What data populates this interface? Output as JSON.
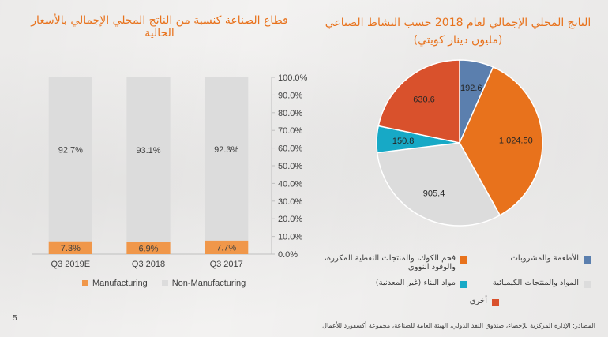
{
  "left_title": "قطاع الصناعة كنسبة من الناتج المحلي الإجمالي بالأسعار الحالية",
  "right_title_line1": "الناتج المحلي الإجمالي لعام 2018 حسب النشاط الصناعي",
  "right_title_line2": "(مليون دينار كويتي)",
  "page_number": "5",
  "source": "المصادر: الإدارة المركزية للإحصاء، صندوق النقد الدولي، الهيئة العامة للصناعة، مجموعة أكسفورد للأعمال",
  "colors": {
    "title": "#e8721c",
    "manufacturing": "#f0974a",
    "non_manufacturing": "#dcdcdc"
  },
  "chart_data": [
    {
      "type": "bar",
      "stacked": true,
      "categories": [
        "Q3 2019E",
        "Q3 2018",
        "Q3 2017"
      ],
      "series": [
        {
          "name": "Manufacturing",
          "values": [
            7.3,
            6.9,
            7.7
          ],
          "labels": [
            "7.3%",
            "6.9%",
            "7.7%"
          ],
          "color": "#f0974a"
        },
        {
          "name": "Non-Manufacturing",
          "values": [
            92.7,
            93.1,
            92.3
          ],
          "labels": [
            "92.7%",
            "93.1%",
            "92.3%"
          ],
          "color": "#dcdcdc"
        }
      ],
      "yaxis_position": "right",
      "ylim": [
        0,
        100
      ],
      "yticks": [
        "0.0%",
        "10.0%",
        "20.0%",
        "30.0%",
        "40.0%",
        "50.0%",
        "60.0%",
        "70.0%",
        "80.0%",
        "90.0%",
        "100.0%"
      ],
      "legend_position": "bottom"
    },
    {
      "type": "pie",
      "slices": [
        {
          "name": "الأطعمة والمشروبات",
          "value": 192.6,
          "label": "192.6",
          "color": "#5b7fae"
        },
        {
          "name": "فحم الكوك، والمنتجات النفطية المكررة، والوقود النووي",
          "value": 1024.5,
          "label": "1,024.50",
          "color": "#e8721c"
        },
        {
          "name": "المواد والمنتجات الكيميائية",
          "value": 905.4,
          "label": "905.4",
          "color": "#dcdcdc"
        },
        {
          "name": "مواد البناء (غير المعدنية)",
          "value": 150.8,
          "label": "150.8",
          "color": "#17a9c6"
        },
        {
          "name": "أخرى",
          "value": 630.6,
          "label": "630.6",
          "color": "#d9512c"
        }
      ],
      "legend_position": "bottom"
    }
  ],
  "pie_legend": [
    {
      "label": "الأطعمة والمشروبات",
      "color": "#5b7fae"
    },
    {
      "label_line1": "فحم الكوك، والمنتجات النفطية المكررة،",
      "label_line2": "والوقود النووي",
      "color": "#e8721c"
    },
    {
      "label": "المواد والمنتجات الكيميائية",
      "color": "#dcdcdc"
    },
    {
      "label": "مواد البناء (غير المعدنية)",
      "color": "#17a9c6"
    },
    {
      "label": "أخرى",
      "color": "#d9512c"
    }
  ]
}
